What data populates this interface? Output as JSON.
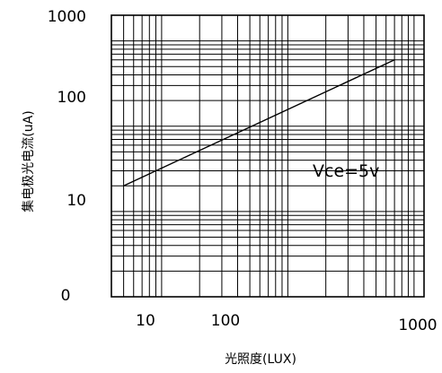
{
  "chart_data": {
    "type": "line",
    "xlabel": "光照度(LUX)",
    "ylabel": "集电极光电流(uA)",
    "x_scale": "log",
    "y_scale": "log",
    "grid": true,
    "x_ticks": [
      "10",
      "100",
      "1000"
    ],
    "y_ticks": [
      "1000",
      "100",
      "10",
      "0"
    ],
    "annotation": "Vce=5v",
    "series": [
      {
        "x": [
          5,
          700
        ],
        "y": [
          20,
          600
        ]
      }
    ]
  }
}
